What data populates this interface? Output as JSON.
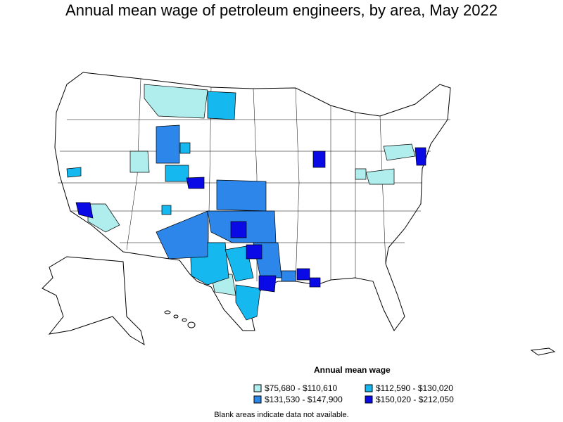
{
  "title": "Annual mean wage of petroleum engineers, by area, May 2022",
  "legend": {
    "title": "Annual mean wage",
    "items": [
      {
        "label": "$75,680 - $110,610",
        "color": "#b0eeee"
      },
      {
        "label": "$112,590 - $130,020",
        "color": "#16b8f0"
      },
      {
        "label": "$131,530 - $147,900",
        "color": "#2d87ea"
      },
      {
        "label": "$150,020 - $212,050",
        "color": "#0a0ae6"
      }
    ]
  },
  "note": "Blank areas indicate data not available."
}
